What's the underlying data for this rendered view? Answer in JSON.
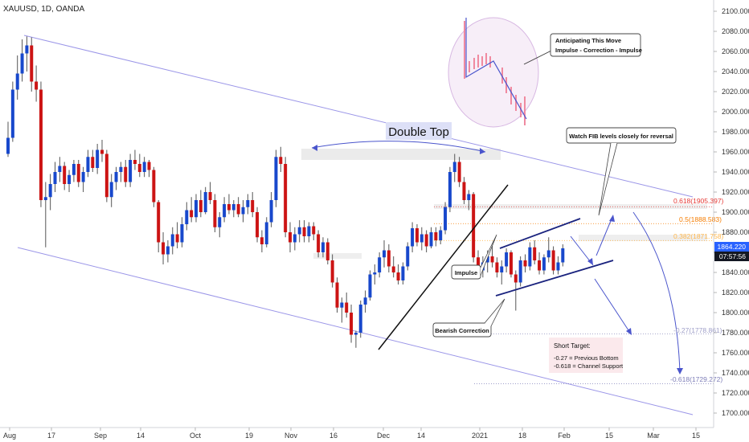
{
  "header": {
    "symbol_line": "XAUUSD, 1D, OANDA"
  },
  "price_axis": {
    "ticks": [
      "2100.000",
      "2080.000",
      "2060.000",
      "2040.000",
      "2020.000",
      "2000.000",
      "1980.000",
      "1960.000",
      "1940.000",
      "1920.000",
      "1900.000",
      "1880.000",
      "1860.000",
      "1840.000",
      "1820.000",
      "1800.000",
      "1780.000",
      "1760.000",
      "1740.000",
      "1720.000",
      "1700.000"
    ],
    "current_price": "1864.220",
    "countdown": "07:57:56",
    "price_badge_color": "#2962ff",
    "countdown_badge_color": "#131722"
  },
  "time_axis": {
    "ticks": [
      "Aug",
      "17",
      "Sep",
      "14",
      "Oct",
      "19",
      "Nov",
      "16",
      "Dec",
      "14",
      "2021",
      "18",
      "Feb",
      "15",
      "Mar",
      "15"
    ]
  },
  "annotations": {
    "double_top": "Double Top",
    "anticipating_title": "Anticipating This Move",
    "anticipating_sub": "Impulse - Correction - Impulse",
    "watch_fib": "Watch FIB levels closely for reversal",
    "impulse": "Impulse",
    "bearish_correction": "Bearish Correction",
    "short_target_title": "Short Target:",
    "short_target_line1": "-0.27 = Previous Bottom",
    "short_target_line2": "-0.618 = Channel Support"
  },
  "fib_levels": [
    {
      "label": "0.618(1905.397)",
      "price": 1905.397,
      "color": "#e53935"
    },
    {
      "label": "0.5(1888.583)",
      "price": 1888.583,
      "color": "#f57c00"
    },
    {
      "label": "0.382(1871.758)",
      "price": 1871.758,
      "color": "#ffb74d"
    },
    {
      "label": "-0.27(1778.861)",
      "price": 1778.861,
      "color": "#9e9ec8"
    },
    {
      "label": "-0.618(1729.272)",
      "price": 1729.272,
      "color": "#7e7eb8"
    }
  ],
  "colors": {
    "up": "#1848cc",
    "down": "#cc1414",
    "channel": "#9b96e8",
    "arrow": "#4a55cc"
  },
  "chart_data": {
    "type": "candlestick",
    "symbol": "XAUUSD",
    "timeframe": "1D",
    "exchange": "OANDA",
    "y_range": [
      1695,
      2110
    ],
    "candles": [
      {
        "x": 0,
        "o": 1958,
        "h": 1990,
        "l": 1955,
        "c": 1974
      },
      {
        "x": 1,
        "o": 1974,
        "h": 2030,
        "l": 1970,
        "c": 2022
      },
      {
        "x": 2,
        "o": 2022,
        "h": 2056,
        "l": 2012,
        "c": 2038
      },
      {
        "x": 3,
        "o": 2038,
        "h": 2072,
        "l": 2030,
        "c": 2058
      },
      {
        "x": 4,
        "o": 2058,
        "h": 2075,
        "l": 2040,
        "c": 2066
      },
      {
        "x": 5,
        "o": 2066,
        "h": 2074,
        "l": 2020,
        "c": 2030
      },
      {
        "x": 6,
        "o": 2030,
        "h": 2046,
        "l": 2010,
        "c": 2022
      },
      {
        "x": 7,
        "o": 2022,
        "h": 2030,
        "l": 1905,
        "c": 1912
      },
      {
        "x": 8,
        "o": 1912,
        "h": 1930,
        "l": 1865,
        "c": 1915
      },
      {
        "x": 9,
        "o": 1915,
        "h": 1938,
        "l": 1902,
        "c": 1928
      },
      {
        "x": 10,
        "o": 1928,
        "h": 1950,
        "l": 1920,
        "c": 1940
      },
      {
        "x": 11,
        "o": 1940,
        "h": 1955,
        "l": 1930,
        "c": 1946
      },
      {
        "x": 12,
        "o": 1946,
        "h": 1950,
        "l": 1922,
        "c": 1928
      },
      {
        "x": 13,
        "o": 1928,
        "h": 1942,
        "l": 1920,
        "c": 1937
      },
      {
        "x": 14,
        "o": 1937,
        "h": 1952,
        "l": 1930,
        "c": 1948
      },
      {
        "x": 15,
        "o": 1948,
        "h": 1952,
        "l": 1925,
        "c": 1930
      },
      {
        "x": 16,
        "o": 1930,
        "h": 1945,
        "l": 1920,
        "c": 1940
      },
      {
        "x": 17,
        "o": 1940,
        "h": 1962,
        "l": 1935,
        "c": 1955
      },
      {
        "x": 18,
        "o": 1955,
        "h": 1962,
        "l": 1940,
        "c": 1944
      },
      {
        "x": 19,
        "o": 1944,
        "h": 1968,
        "l": 1938,
        "c": 1962
      },
      {
        "x": 20,
        "o": 1962,
        "h": 1972,
        "l": 1950,
        "c": 1958
      },
      {
        "x": 21,
        "o": 1958,
        "h": 1962,
        "l": 1910,
        "c": 1915
      },
      {
        "x": 22,
        "o": 1915,
        "h": 1938,
        "l": 1905,
        "c": 1930
      },
      {
        "x": 23,
        "o": 1930,
        "h": 1945,
        "l": 1922,
        "c": 1940
      },
      {
        "x": 24,
        "o": 1940,
        "h": 1950,
        "l": 1930,
        "c": 1945
      },
      {
        "x": 25,
        "o": 1945,
        "h": 1952,
        "l": 1925,
        "c": 1930
      },
      {
        "x": 26,
        "o": 1930,
        "h": 1958,
        "l": 1925,
        "c": 1952
      },
      {
        "x": 27,
        "o": 1952,
        "h": 1962,
        "l": 1942,
        "c": 1948
      },
      {
        "x": 28,
        "o": 1948,
        "h": 1958,
        "l": 1935,
        "c": 1940
      },
      {
        "x": 29,
        "o": 1940,
        "h": 1955,
        "l": 1935,
        "c": 1950
      },
      {
        "x": 30,
        "o": 1950,
        "h": 1952,
        "l": 1935,
        "c": 1942
      },
      {
        "x": 31,
        "o": 1942,
        "h": 1945,
        "l": 1905,
        "c": 1910
      },
      {
        "x": 32,
        "o": 1910,
        "h": 1912,
        "l": 1860,
        "c": 1870
      },
      {
        "x": 33,
        "o": 1870,
        "h": 1880,
        "l": 1848,
        "c": 1858
      },
      {
        "x": 34,
        "o": 1858,
        "h": 1872,
        "l": 1850,
        "c": 1866
      },
      {
        "x": 35,
        "o": 1866,
        "h": 1885,
        "l": 1858,
        "c": 1878
      },
      {
        "x": 36,
        "o": 1878,
        "h": 1890,
        "l": 1864,
        "c": 1870
      },
      {
        "x": 37,
        "o": 1870,
        "h": 1895,
        "l": 1865,
        "c": 1888
      },
      {
        "x": 38,
        "o": 1888,
        "h": 1910,
        "l": 1882,
        "c": 1902
      },
      {
        "x": 39,
        "o": 1902,
        "h": 1915,
        "l": 1890,
        "c": 1895
      },
      {
        "x": 40,
        "o": 1895,
        "h": 1918,
        "l": 1890,
        "c": 1912
      },
      {
        "x": 41,
        "o": 1912,
        "h": 1922,
        "l": 1895,
        "c": 1900
      },
      {
        "x": 42,
        "o": 1900,
        "h": 1925,
        "l": 1898,
        "c": 1920
      },
      {
        "x": 43,
        "o": 1920,
        "h": 1930,
        "l": 1908,
        "c": 1912
      },
      {
        "x": 44,
        "o": 1912,
        "h": 1918,
        "l": 1880,
        "c": 1885
      },
      {
        "x": 45,
        "o": 1885,
        "h": 1900,
        "l": 1875,
        "c": 1895
      },
      {
        "x": 46,
        "o": 1895,
        "h": 1915,
        "l": 1890,
        "c": 1908
      },
      {
        "x": 47,
        "o": 1908,
        "h": 1918,
        "l": 1898,
        "c": 1902
      },
      {
        "x": 48,
        "o": 1902,
        "h": 1912,
        "l": 1895,
        "c": 1908
      },
      {
        "x": 49,
        "o": 1908,
        "h": 1915,
        "l": 1895,
        "c": 1898
      },
      {
        "x": 50,
        "o": 1898,
        "h": 1912,
        "l": 1890,
        "c": 1905
      },
      {
        "x": 51,
        "o": 1905,
        "h": 1918,
        "l": 1898,
        "c": 1912
      },
      {
        "x": 52,
        "o": 1912,
        "h": 1920,
        "l": 1895,
        "c": 1900
      },
      {
        "x": 53,
        "o": 1900,
        "h": 1905,
        "l": 1870,
        "c": 1875
      },
      {
        "x": 54,
        "o": 1875,
        "h": 1882,
        "l": 1860,
        "c": 1868
      },
      {
        "x": 55,
        "o": 1868,
        "h": 1895,
        "l": 1865,
        "c": 1890
      },
      {
        "x": 56,
        "o": 1890,
        "h": 1920,
        "l": 1885,
        "c": 1912
      },
      {
        "x": 57,
        "o": 1912,
        "h": 1962,
        "l": 1905,
        "c": 1955
      },
      {
        "x": 58,
        "o": 1955,
        "h": 1965,
        "l": 1940,
        "c": 1948
      },
      {
        "x": 59,
        "o": 1948,
        "h": 1955,
        "l": 1875,
        "c": 1880
      },
      {
        "x": 60,
        "o": 1880,
        "h": 1890,
        "l": 1860,
        "c": 1870
      },
      {
        "x": 61,
        "o": 1870,
        "h": 1885,
        "l": 1862,
        "c": 1878
      },
      {
        "x": 62,
        "o": 1878,
        "h": 1892,
        "l": 1870,
        "c": 1885
      },
      {
        "x": 63,
        "o": 1885,
        "h": 1892,
        "l": 1870,
        "c": 1876
      },
      {
        "x": 64,
        "o": 1876,
        "h": 1890,
        "l": 1870,
        "c": 1886
      },
      {
        "x": 65,
        "o": 1886,
        "h": 1890,
        "l": 1872,
        "c": 1878
      },
      {
        "x": 66,
        "o": 1878,
        "h": 1882,
        "l": 1855,
        "c": 1860
      },
      {
        "x": 67,
        "o": 1860,
        "h": 1875,
        "l": 1855,
        "c": 1870
      },
      {
        "x": 68,
        "o": 1870,
        "h": 1874,
        "l": 1848,
        "c": 1852
      },
      {
        "x": 69,
        "o": 1852,
        "h": 1858,
        "l": 1825,
        "c": 1830
      },
      {
        "x": 70,
        "o": 1830,
        "h": 1835,
        "l": 1800,
        "c": 1805
      },
      {
        "x": 71,
        "o": 1805,
        "h": 1815,
        "l": 1790,
        "c": 1810
      },
      {
        "x": 72,
        "o": 1810,
        "h": 1820,
        "l": 1795,
        "c": 1800
      },
      {
        "x": 73,
        "o": 1800,
        "h": 1808,
        "l": 1770,
        "c": 1778
      },
      {
        "x": 74,
        "o": 1778,
        "h": 1782,
        "l": 1765,
        "c": 1780
      },
      {
        "x": 75,
        "o": 1780,
        "h": 1812,
        "l": 1775,
        "c": 1808
      },
      {
        "x": 76,
        "o": 1808,
        "h": 1822,
        "l": 1800,
        "c": 1815
      },
      {
        "x": 77,
        "o": 1815,
        "h": 1842,
        "l": 1812,
        "c": 1838
      },
      {
        "x": 78,
        "o": 1838,
        "h": 1848,
        "l": 1828,
        "c": 1840
      },
      {
        "x": 79,
        "o": 1840,
        "h": 1860,
        "l": 1835,
        "c": 1855
      },
      {
        "x": 80,
        "o": 1855,
        "h": 1872,
        "l": 1845,
        "c": 1862
      },
      {
        "x": 81,
        "o": 1862,
        "h": 1868,
        "l": 1840,
        "c": 1846
      },
      {
        "x": 82,
        "o": 1846,
        "h": 1856,
        "l": 1835,
        "c": 1840
      },
      {
        "x": 83,
        "o": 1840,
        "h": 1848,
        "l": 1828,
        "c": 1832
      },
      {
        "x": 84,
        "o": 1832,
        "h": 1850,
        "l": 1828,
        "c": 1846
      },
      {
        "x": 85,
        "o": 1846,
        "h": 1870,
        "l": 1842,
        "c": 1866
      },
      {
        "x": 86,
        "o": 1866,
        "h": 1890,
        "l": 1860,
        "c": 1884
      },
      {
        "x": 87,
        "o": 1884,
        "h": 1888,
        "l": 1866,
        "c": 1870
      },
      {
        "x": 88,
        "o": 1870,
        "h": 1885,
        "l": 1862,
        "c": 1878
      },
      {
        "x": 89,
        "o": 1878,
        "h": 1882,
        "l": 1860,
        "c": 1866
      },
      {
        "x": 90,
        "o": 1866,
        "h": 1885,
        "l": 1864,
        "c": 1880
      },
      {
        "x": 91,
        "o": 1880,
        "h": 1885,
        "l": 1866,
        "c": 1872
      },
      {
        "x": 92,
        "o": 1872,
        "h": 1886,
        "l": 1868,
        "c": 1882
      },
      {
        "x": 93,
        "o": 1882,
        "h": 1910,
        "l": 1878,
        "c": 1905
      },
      {
        "x": 94,
        "o": 1905,
        "h": 1945,
        "l": 1900,
        "c": 1940
      },
      {
        "x": 95,
        "o": 1940,
        "h": 1958,
        "l": 1930,
        "c": 1950
      },
      {
        "x": 96,
        "o": 1950,
        "h": 1955,
        "l": 1925,
        "c": 1930
      },
      {
        "x": 97,
        "o": 1930,
        "h": 1935,
        "l": 1908,
        "c": 1912
      },
      {
        "x": 98,
        "o": 1912,
        "h": 1922,
        "l": 1902,
        "c": 1918
      },
      {
        "x": 99,
        "o": 1918,
        "h": 1920,
        "l": 1850,
        "c": 1855
      },
      {
        "x": 100,
        "o": 1855,
        "h": 1862,
        "l": 1835,
        "c": 1842
      },
      {
        "x": 101,
        "o": 1842,
        "h": 1856,
        "l": 1835,
        "c": 1850
      },
      {
        "x": 102,
        "o": 1850,
        "h": 1862,
        "l": 1840,
        "c": 1856
      },
      {
        "x": 103,
        "o": 1856,
        "h": 1868,
        "l": 1845,
        "c": 1850
      },
      {
        "x": 104,
        "o": 1850,
        "h": 1855,
        "l": 1835,
        "c": 1840
      },
      {
        "x": 105,
        "o": 1840,
        "h": 1852,
        "l": 1828,
        "c": 1846
      },
      {
        "x": 106,
        "o": 1846,
        "h": 1864,
        "l": 1840,
        "c": 1860
      },
      {
        "x": 107,
        "o": 1860,
        "h": 1862,
        "l": 1835,
        "c": 1838
      },
      {
        "x": 108,
        "o": 1838,
        "h": 1842,
        "l": 1802,
        "c": 1830
      },
      {
        "x": 109,
        "o": 1830,
        "h": 1856,
        "l": 1826,
        "c": 1852
      },
      {
        "x": 110,
        "o": 1852,
        "h": 1858,
        "l": 1840,
        "c": 1846
      },
      {
        "x": 111,
        "o": 1846,
        "h": 1870,
        "l": 1842,
        "c": 1865
      },
      {
        "x": 112,
        "o": 1865,
        "h": 1872,
        "l": 1848,
        "c": 1852
      },
      {
        "x": 113,
        "o": 1852,
        "h": 1860,
        "l": 1838,
        "c": 1842
      },
      {
        "x": 114,
        "o": 1842,
        "h": 1858,
        "l": 1838,
        "c": 1855
      },
      {
        "x": 115,
        "o": 1855,
        "h": 1875,
        "l": 1850,
        "c": 1862
      },
      {
        "x": 116,
        "o": 1862,
        "h": 1866,
        "l": 1838,
        "c": 1842
      },
      {
        "x": 117,
        "o": 1842,
        "h": 1856,
        "l": 1838,
        "c": 1850
      },
      {
        "x": 118,
        "o": 1850,
        "h": 1868,
        "l": 1846,
        "c": 1864
      }
    ]
  }
}
